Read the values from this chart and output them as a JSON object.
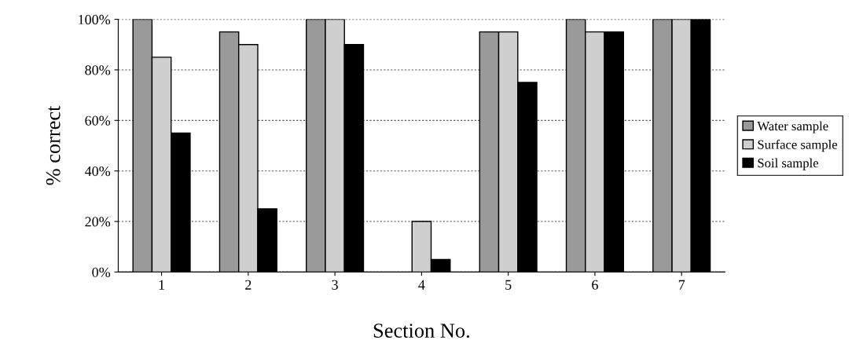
{
  "chart_data": {
    "type": "bar",
    "xlabel": "Section No.",
    "ylabel": "% correct",
    "categories": [
      "1",
      "2",
      "3",
      "4",
      "5",
      "6",
      "7"
    ],
    "series": [
      {
        "name": "Water sample",
        "color": "#9a9a9a",
        "values": [
          100,
          95,
          100,
          0,
          95,
          100,
          100
        ]
      },
      {
        "name": "Surface sample",
        "color": "#cfcfcf",
        "values": [
          85,
          90,
          100,
          20,
          95,
          95,
          100
        ]
      },
      {
        "name": "Soil sample",
        "color": "#000000",
        "values": [
          55,
          25,
          90,
          5,
          75,
          95,
          100
        ]
      }
    ],
    "ylim": [
      0,
      100
    ],
    "yticks": [
      {
        "value": 0,
        "label": "0%"
      },
      {
        "value": 20,
        "label": "20%"
      },
      {
        "value": 40,
        "label": "40%"
      },
      {
        "value": 60,
        "label": "60%"
      },
      {
        "value": 80,
        "label": "80%"
      },
      {
        "value": 100,
        "label": "100%"
      }
    ],
    "grid": "y",
    "legend": "right"
  }
}
